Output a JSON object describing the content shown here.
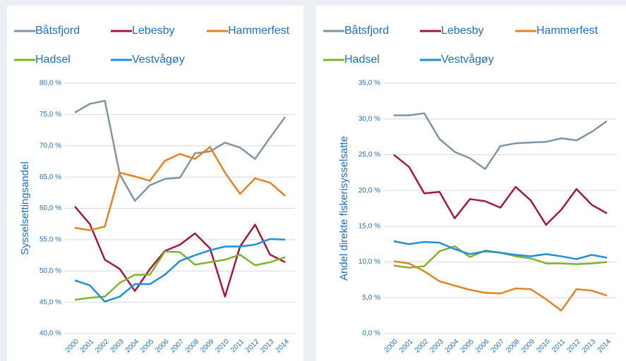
{
  "chart_data": [
    {
      "type": "line",
      "y_axis_label": "Sysselsettingsandel",
      "categories": [
        "2000",
        "2001",
        "2002",
        "2003",
        "2004",
        "2005",
        "2006",
        "2007",
        "2008",
        "2009",
        "2010",
        "2011",
        "2012",
        "2013",
        "2014"
      ],
      "ylim": [
        40,
        80
      ],
      "yticks": [
        {
          "value": 40,
          "label": "40,0 %"
        },
        {
          "value": 45,
          "label": "45,0 %"
        },
        {
          "value": 50,
          "label": "50,0 %"
        },
        {
          "value": 55,
          "label": "55,0 %"
        },
        {
          "value": 60,
          "label": "60,0 %"
        },
        {
          "value": 65,
          "label": "65,0 %"
        },
        {
          "value": 70,
          "label": "70,0 %"
        },
        {
          "value": 75,
          "label": "75,0 %"
        },
        {
          "value": 80,
          "label": "80,0 %"
        }
      ],
      "grid": true,
      "series": [
        {
          "name": "Båtsfjord",
          "color": "#7f95a4",
          "values": [
            75.3,
            76.7,
            77.2,
            65.4,
            61.2,
            63.7,
            64.7,
            64.9,
            68.8,
            69.1,
            70.5,
            69.7,
            67.9,
            71.3,
            74.6
          ]
        },
        {
          "name": "Lebesby",
          "color": "#a6163f",
          "values": [
            60.3,
            57.5,
            51.8,
            50.3,
            46.8,
            50.3,
            53.2,
            54.2,
            56.0,
            53.6,
            45.9,
            53.9,
            57.4,
            52.6,
            51.4
          ]
        },
        {
          "name": "Hammerfest",
          "color": "#e8821e",
          "values": [
            56.9,
            56.5,
            57.1,
            65.7,
            65.1,
            64.4,
            67.6,
            68.7,
            67.9,
            69.8,
            65.7,
            62.3,
            64.8,
            64.1,
            62.0
          ]
        },
        {
          "name": "Hadsel",
          "color": "#7fb42a",
          "values": [
            45.4,
            45.7,
            45.9,
            48.1,
            49.4,
            49.4,
            53.1,
            53.0,
            51.0,
            51.4,
            51.8,
            52.6,
            50.9,
            51.4,
            52.2
          ]
        },
        {
          "name": "Vestvågøy",
          "color": "#1e90e0",
          "values": [
            48.5,
            47.7,
            45.1,
            45.9,
            47.9,
            47.9,
            49.4,
            51.6,
            52.5,
            53.3,
            53.9,
            53.9,
            54.2,
            55.1,
            55.0
          ]
        }
      ]
    },
    {
      "type": "line",
      "y_axis_label": "Andel direkte fiskerisysselsatte",
      "categories": [
        "2000",
        "2001",
        "2002",
        "2003",
        "2004",
        "2005",
        "2006",
        "2007",
        "2008",
        "2009",
        "2010",
        "2011",
        "2012",
        "2013",
        "2014"
      ],
      "ylim": [
        0,
        35
      ],
      "yticks": [
        {
          "value": 0,
          "label": "0,0 %"
        },
        {
          "value": 5,
          "label": "5,0 %"
        },
        {
          "value": 10,
          "label": "10,0 %"
        },
        {
          "value": 15,
          "label": "15,0 %"
        },
        {
          "value": 20,
          "label": "20,0 %"
        },
        {
          "value": 25,
          "label": "25,0 %"
        },
        {
          "value": 30,
          "label": "30,0 %"
        },
        {
          "value": 35,
          "label": "35,0 %"
        }
      ],
      "grid": true,
      "series": [
        {
          "name": "Båtsfjord",
          "color": "#7f95a4",
          "values": [
            30.5,
            30.5,
            30.8,
            27.2,
            25.4,
            24.5,
            23.0,
            26.2,
            26.6,
            26.7,
            26.8,
            27.3,
            27.0,
            28.2,
            29.7
          ]
        },
        {
          "name": "Lebesby",
          "color": "#a6163f",
          "values": [
            25.0,
            23.3,
            19.6,
            19.8,
            16.1,
            18.8,
            18.5,
            17.6,
            20.5,
            18.6,
            15.2,
            17.3,
            20.2,
            18.0,
            16.8
          ]
        },
        {
          "name": "Hammerfest",
          "color": "#e8821e",
          "values": [
            10.1,
            9.8,
            8.7,
            7.3,
            6.7,
            6.1,
            5.7,
            5.6,
            6.3,
            6.2,
            4.8,
            3.2,
            6.2,
            6.0,
            5.3
          ]
        },
        {
          "name": "Hadsel",
          "color": "#7fb42a",
          "values": [
            9.5,
            9.2,
            9.4,
            11.5,
            12.2,
            10.7,
            11.6,
            11.3,
            10.8,
            10.5,
            9.8,
            9.8,
            9.7,
            9.8,
            10.0
          ]
        },
        {
          "name": "Vestvågøy",
          "color": "#1e90e0",
          "values": [
            12.9,
            12.5,
            12.8,
            12.7,
            11.8,
            11.1,
            11.5,
            11.3,
            11.0,
            10.8,
            11.1,
            10.8,
            10.4,
            11.0,
            10.6
          ]
        }
      ]
    }
  ]
}
